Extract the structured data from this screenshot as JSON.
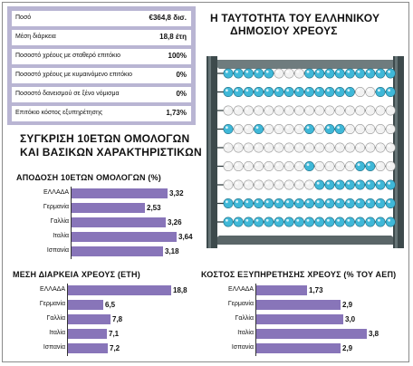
{
  "stats": [
    {
      "label": "Ποσό",
      "value": "€364,8 δισ."
    },
    {
      "label": "Μέση διάρκεια",
      "value": "18,8 έτη"
    },
    {
      "label": "Ποσοστό χρέους με σταθερό επιτόκιο",
      "value": "100%"
    },
    {
      "label": "Ποσοστό χρέους με κυμαινόμενο επιτόκιο",
      "value": "0%"
    },
    {
      "label": "Ποσοστό δανεισμού σε ξένο νόμισμα",
      "value": "0%"
    },
    {
      "label": "Επιτόκιο κόστος εξυπηρέτησης",
      "value": "1,73%"
    }
  ],
  "abacus_title": [
    "Η ΤΑΥΤΟΤΗΤΑ ΤΟΥ ΕΛΛΗΝΙΚΟΥ",
    "ΔΗΜΟΣΙΟΥ ΧΡΕΟΥΣ"
  ],
  "comparison_title": [
    "ΣΥΓΚΡΙΣΗ 10ΕΤΩΝ ΟΜΟΛΟΓΩΝ",
    "ΚΑΙ ΒΑΣΙΚΩΝ ΧΑΡΑΚΤΗΡΙΣΤΙΚΩΝ"
  ],
  "colors": {
    "bar": "#8875b9",
    "panel": "#b9b5d3",
    "abacus_frame": "#3d4a4c",
    "bead_cyan": "#3fb8d8",
    "bead_white": "#f2f2f2"
  },
  "chart_data": [
    {
      "type": "bar",
      "orientation": "horizontal",
      "title": "ΑΠΟΔΟΣΗ 10ΕΤΩΝ ΟΜΟΛΟΓΩΝ (%)",
      "categories": [
        "ΕΛΛΑΔΑ",
        "Γερμανία",
        "Γαλλία",
        "Ιταλία",
        "Ισπανία"
      ],
      "values": [
        3.32,
        2.53,
        3.26,
        3.64,
        3.18
      ],
      "labels": [
        "3,32",
        "2,53",
        "3,26",
        "3,64",
        "3,18"
      ],
      "xlim": [
        0,
        3.64
      ]
    },
    {
      "type": "bar",
      "orientation": "horizontal",
      "title": "ΜΕΣΗ ΔΙΑΡΚΕΙΑ ΧΡΕΟΥΣ (ΕΤΗ)",
      "categories": [
        "ΕΛΛΑΔΑ",
        "Γερμανία",
        "Γαλλία",
        "Ιταλία",
        "Ισπανία"
      ],
      "values": [
        18.8,
        6.5,
        7.8,
        7.1,
        7.2
      ],
      "labels": [
        "18,8",
        "6,5",
        "7,8",
        "7,1",
        "7,2"
      ],
      "xlim": [
        0,
        18.8
      ]
    },
    {
      "type": "bar",
      "orientation": "horizontal",
      "title": "ΚΟΣΤΟΣ ΕΞΥΠΗΡΕΤΗΣΗΣ ΧΡΕΟΥΣ (% ΤΟΥ ΑΕΠ)",
      "categories": [
        "ΕΛΛΑΔΑ",
        "Γερμανία",
        "Γαλλία",
        "Ιταλία",
        "Ισπανία"
      ],
      "values": [
        1.73,
        2.9,
        3.0,
        3.8,
        2.9
      ],
      "labels": [
        "1,73",
        "2,9",
        "3,0",
        "3,8",
        "2,9"
      ],
      "xlim": [
        0,
        3.8
      ]
    }
  ]
}
